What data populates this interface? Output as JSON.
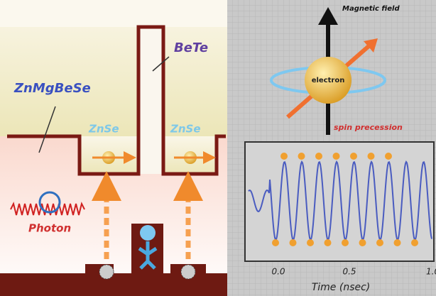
{
  "left_panel": {
    "barrier_label": "ZnMgBeSe",
    "top_barrier_label": "BeTe",
    "wells": [
      "ZnSe",
      "ZnSe"
    ],
    "photon_label": "Photon"
  },
  "right_panel": {
    "field_label": "Magnetic field",
    "particle_label": "electron",
    "precession_label": "spin precession"
  },
  "plot": {
    "xticks": [
      "0.0",
      "0.5",
      "1.0"
    ],
    "xlabel": "Time (nsec)"
  }
}
